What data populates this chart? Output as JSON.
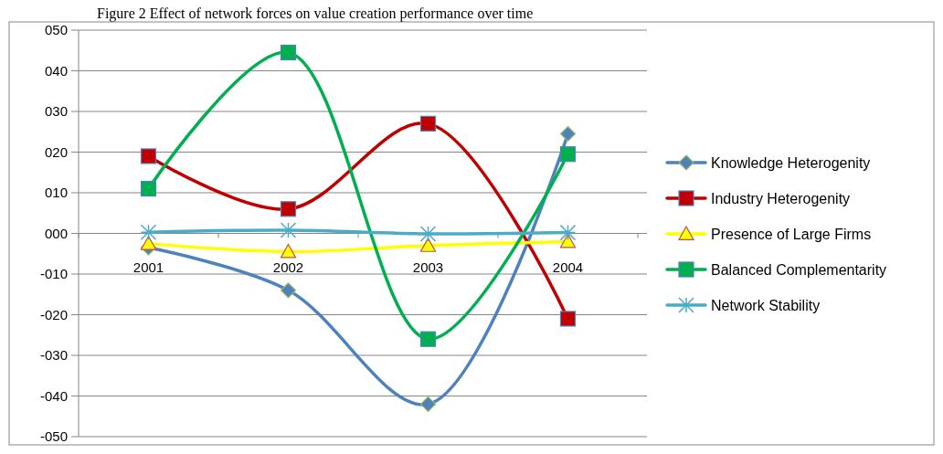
{
  "chart_data": {
    "type": "line",
    "title": "Figure 2 Effect of network forces on value creation performance over time",
    "categories": [
      "2001",
      "2002",
      "2003",
      "2004"
    ],
    "series": [
      {
        "name": "Knowledge Heterogenity",
        "color": "#4f81bd",
        "marker": "diamond",
        "values": [
          -3.5,
          -14,
          -42,
          24.5
        ]
      },
      {
        "name": "Industry Heterogenity",
        "color": "#c00000",
        "marker": "square",
        "values": [
          19,
          6,
          27,
          -21
        ]
      },
      {
        "name": "Presence of Large Firms",
        "color": "#ffff00",
        "marker": "triangle",
        "values": [
          -2.5,
          -4.5,
          -3,
          -2
        ]
      },
      {
        "name": "Balanced Complementarity",
        "color": "#00b050",
        "marker": "square",
        "values": [
          11,
          44.5,
          -26,
          19.5
        ]
      },
      {
        "name": "Network Stability",
        "color": "#4bacc6",
        "marker": "cross",
        "values": [
          0.3,
          0.8,
          -0.1,
          0.2
        ]
      }
    ],
    "ylim": [
      -50,
      50
    ],
    "yticks": [
      {
        "value": -50,
        "label": "-050"
      },
      {
        "value": -40,
        "label": "-040"
      },
      {
        "value": -30,
        "label": "-030"
      },
      {
        "value": -20,
        "label": "-020"
      },
      {
        "value": -10,
        "label": "-010"
      },
      {
        "value": 0,
        "label": "000"
      },
      {
        "value": 10,
        "label": "010"
      },
      {
        "value": 20,
        "label": "020"
      },
      {
        "value": 30,
        "label": "030"
      },
      {
        "value": 40,
        "label": "040"
      },
      {
        "value": 50,
        "label": "050"
      }
    ],
    "grid": "y",
    "legend": "right",
    "line_style": "solid"
  }
}
